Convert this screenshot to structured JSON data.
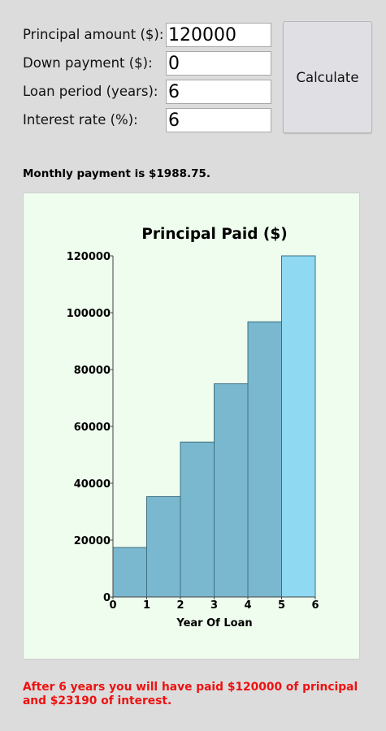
{
  "form": {
    "principal": {
      "label": "Principal amount ($):",
      "value": "120000"
    },
    "down_payment": {
      "label": "Down payment ($):",
      "value": "0"
    },
    "loan_period": {
      "label": "Loan period (years):",
      "value": "6"
    },
    "interest_rate": {
      "label": "Interest rate (%):",
      "value": "6"
    },
    "calculate_label": "Calculate"
  },
  "monthly_payment_text": "Monthly payment is $1988.75.",
  "summary_text": "After 6 years you will have paid $120000 of principal and $23190 of interest.",
  "colors": {
    "bar": "#7ab8cf",
    "bar_highlight": "#8fd9f2",
    "bar_stroke": "#3d6f82",
    "panel_bg": "#eefdee",
    "summary": "#ee1111"
  },
  "chart_data": {
    "type": "bar",
    "title": "Principal Paid ($)",
    "xlabel": "Year Of Loan",
    "ylabel": "",
    "x_ticks": [
      "0",
      "1",
      "2",
      "3",
      "4",
      "5",
      "6"
    ],
    "y_ticks": [
      "0",
      "20000",
      "40000",
      "60000",
      "80000",
      "100000",
      "120000"
    ],
    "xlim": [
      0,
      6
    ],
    "ylim": [
      0,
      120000
    ],
    "bins": [
      [
        0,
        1
      ],
      [
        1,
        2
      ],
      [
        2,
        3
      ],
      [
        3,
        4
      ],
      [
        4,
        5
      ],
      [
        5,
        6
      ]
    ],
    "values": [
      17400,
      35300,
      54500,
      75000,
      96800,
      120000
    ],
    "highlighted_index": 5,
    "grid": false,
    "legend": "none"
  }
}
